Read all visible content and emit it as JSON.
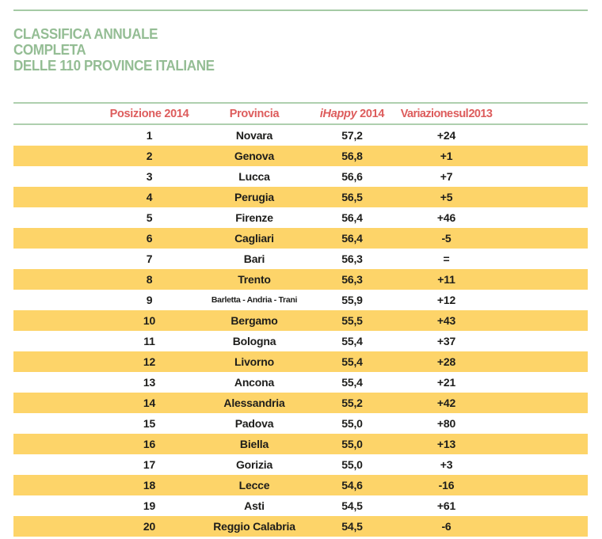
{
  "title": {
    "lines": [
      "CLASSIFICA ANNUALE",
      "COMPLETA",
      "DELLE 110 PROVINCE ITALIANE"
    ]
  },
  "colors": {
    "title_green": "#94bd94",
    "rule_green": "#a5caa5",
    "header_red": "#dd5c5c",
    "row_highlight_yellow": "#fdd469",
    "body_text": "#1d1d1b",
    "background": "#ffffff"
  },
  "table": {
    "headers": {
      "posizione": "Posizione 2014",
      "provincia": "Provincia",
      "ihappy_italic": "iHappy",
      "ihappy_rest": " 2014",
      "variazione": "Variazione sul 2013"
    },
    "zebra_note": "even-numbered positions have yellow highlight",
    "rows": [
      {
        "posizione": "1",
        "provincia": "Novara",
        "ihappy": "57,2",
        "variazione": "+24"
      },
      {
        "posizione": "2",
        "provincia": "Genova",
        "ihappy": "56,8",
        "variazione": "+1"
      },
      {
        "posizione": "3",
        "provincia": "Lucca",
        "ihappy": "56,6",
        "variazione": "+7"
      },
      {
        "posizione": "4",
        "provincia": "Perugia",
        "ihappy": "56,5",
        "variazione": "+5"
      },
      {
        "posizione": "5",
        "provincia": "Firenze",
        "ihappy": "56,4",
        "variazione": "+46"
      },
      {
        "posizione": "6",
        "provincia": "Cagliari",
        "ihappy": "56,4",
        "variazione": "-5"
      },
      {
        "posizione": "7",
        "provincia": "Bari",
        "ihappy": "56,3",
        "variazione": "="
      },
      {
        "posizione": "8",
        "provincia": "Trento",
        "ihappy": "56,3",
        "variazione": "+11"
      },
      {
        "posizione": "9",
        "provincia": "Barletta - Andria - Trani",
        "ihappy": "55,9",
        "variazione": "+12"
      },
      {
        "posizione": "10",
        "provincia": "Bergamo",
        "ihappy": "55,5",
        "variazione": "+43"
      },
      {
        "posizione": "11",
        "provincia": "Bologna",
        "ihappy": "55,4",
        "variazione": "+37"
      },
      {
        "posizione": "12",
        "provincia": "Livorno",
        "ihappy": "55,4",
        "variazione": "+28"
      },
      {
        "posizione": "13",
        "provincia": "Ancona",
        "ihappy": "55,4",
        "variazione": "+21"
      },
      {
        "posizione": "14",
        "provincia": "Alessandria",
        "ihappy": "55,2",
        "variazione": "+42"
      },
      {
        "posizione": "15",
        "provincia": "Padova",
        "ihappy": "55,0",
        "variazione": "+80"
      },
      {
        "posizione": "16",
        "provincia": "Biella",
        "ihappy": "55,0",
        "variazione": "+13"
      },
      {
        "posizione": "17",
        "provincia": "Gorizia",
        "ihappy": "55,0",
        "variazione": "+3"
      },
      {
        "posizione": "18",
        "provincia": "Lecce",
        "ihappy": "54,6",
        "variazione": "-16"
      },
      {
        "posizione": "19",
        "provincia": "Asti",
        "ihappy": "54,5",
        "variazione": "+61"
      },
      {
        "posizione": "20",
        "provincia": "Reggio Calabria",
        "ihappy": "54,5",
        "variazione": "-6"
      }
    ]
  }
}
